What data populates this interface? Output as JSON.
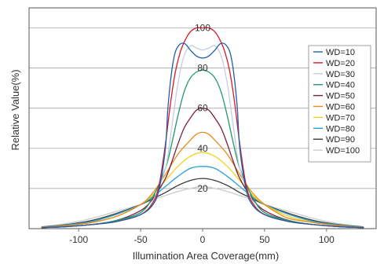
{
  "chart_data": {
    "type": "line",
    "title": "",
    "xlabel": "Illumination Area Coverage(mm)",
    "ylabel": "Relative Value(%)",
    "xlim": [
      -140,
      140
    ],
    "ylim": [
      0,
      110
    ],
    "x_ticks": [
      "-100",
      "-50",
      "0",
      "50",
      "100"
    ],
    "y_ticks": [
      "20",
      "40",
      "60",
      "80",
      "100"
    ],
    "grid": "horizontal",
    "legend_position": "right",
    "series": [
      {
        "name": "WD=10",
        "color": "#1f5fa8",
        "x": [
          -130,
          -110,
          -90,
          -70,
          -50,
          -40,
          -35,
          -30,
          -28,
          -25,
          -22,
          -18,
          -14,
          -10,
          -5,
          0,
          5,
          10,
          14,
          18,
          22,
          25,
          28,
          30,
          35,
          40,
          50,
          70,
          90,
          110,
          130
        ],
        "y": [
          0.5,
          1,
          2,
          3.5,
          7,
          12,
          20,
          40,
          60,
          78,
          88,
          92,
          92,
          89,
          86,
          85,
          86,
          89,
          92,
          92,
          88,
          78,
          60,
          40,
          20,
          12,
          7,
          3.5,
          2,
          1,
          0.5
        ]
      },
      {
        "name": "WD=20",
        "color": "#d7192b",
        "x": [
          -130,
          -110,
          -90,
          -70,
          -50,
          -40,
          -35,
          -30,
          -26,
          -22,
          -18,
          -14,
          -10,
          -5,
          0,
          5,
          10,
          14,
          18,
          22,
          26,
          30,
          35,
          40,
          50,
          70,
          90,
          110,
          130
        ],
        "y": [
          0.5,
          1,
          2,
          3.5,
          7,
          13,
          22,
          42,
          62,
          78,
          88,
          94,
          98,
          100,
          100,
          100,
          98,
          94,
          88,
          78,
          62,
          42,
          22,
          13,
          7,
          3.5,
          2,
          1,
          0.5
        ]
      },
      {
        "name": "WD=30",
        "color": "#c5cde0",
        "x": [
          -130,
          -110,
          -90,
          -70,
          -50,
          -40,
          -30,
          -25,
          -20,
          -15,
          -10,
          -5,
          0,
          5,
          10,
          15,
          20,
          25,
          30,
          40,
          50,
          70,
          90,
          110,
          130
        ],
        "y": [
          0.5,
          1,
          2,
          3.5,
          7,
          14,
          30,
          50,
          72,
          86,
          91,
          90,
          89,
          90,
          91,
          86,
          72,
          50,
          30,
          14,
          7,
          3.5,
          2,
          1,
          0.5
        ]
      },
      {
        "name": "WD=40",
        "color": "#1e9a6b",
        "x": [
          -130,
          -110,
          -90,
          -70,
          -50,
          -40,
          -30,
          -25,
          -20,
          -15,
          -10,
          -5,
          0,
          5,
          10,
          15,
          20,
          25,
          30,
          40,
          50,
          70,
          90,
          110,
          130
        ],
        "y": [
          0.5,
          1,
          2,
          4,
          8,
          16,
          30,
          42,
          56,
          68,
          75,
          78,
          79,
          78,
          75,
          68,
          56,
          42,
          30,
          16,
          8,
          4,
          2,
          1,
          0.5
        ]
      },
      {
        "name": "WD=50",
        "color": "#7a1f3d",
        "x": [
          -130,
          -110,
          -90,
          -70,
          -50,
          -40,
          -30,
          -25,
          -20,
          -15,
          -10,
          -5,
          0,
          5,
          10,
          15,
          20,
          25,
          30,
          40,
          50,
          70,
          90,
          110,
          130
        ],
        "y": [
          0.5,
          1,
          2,
          4,
          9,
          15,
          25,
          33,
          42,
          50,
          55,
          59,
          60,
          59,
          55,
          50,
          42,
          33,
          25,
          15,
          9,
          4,
          2,
          1,
          0.5
        ]
      },
      {
        "name": "WD=60",
        "color": "#e98a1a",
        "x": [
          -130,
          -110,
          -90,
          -70,
          -50,
          -40,
          -30,
          -20,
          -10,
          -5,
          0,
          5,
          10,
          20,
          30,
          40,
          50,
          60,
          70,
          90,
          110,
          130
        ],
        "y": [
          0.6,
          1.5,
          3,
          6,
          12,
          18,
          27,
          37,
          44,
          47,
          48,
          47,
          44,
          37,
          27,
          18,
          12,
          8,
          5,
          3,
          1.5,
          0.6
        ]
      },
      {
        "name": "WD=70",
        "color": "#f2d21a",
        "x": [
          -130,
          -110,
          -90,
          -70,
          -50,
          -40,
          -30,
          -20,
          -10,
          0,
          10,
          20,
          30,
          40,
          50,
          70,
          90,
          110,
          130
        ],
        "y": [
          0.6,
          1.5,
          3,
          6,
          12,
          17,
          24,
          31,
          36,
          38,
          36,
          31,
          24,
          17,
          12,
          6,
          3,
          1.5,
          0.6
        ]
      },
      {
        "name": "WD=80",
        "color": "#2aa2d6",
        "x": [
          -130,
          -110,
          -90,
          -70,
          -50,
          -40,
          -30,
          -20,
          -10,
          0,
          10,
          20,
          30,
          40,
          50,
          70,
          90,
          110,
          130
        ],
        "y": [
          0.7,
          1.8,
          3.5,
          7,
          12,
          16,
          21,
          26,
          30,
          31,
          30,
          26,
          21,
          16,
          12,
          7,
          3.5,
          1.8,
          0.7
        ]
      },
      {
        "name": "WD=90",
        "color": "#3a3a3a",
        "x": [
          -130,
          -110,
          -90,
          -70,
          -50,
          -40,
          -30,
          -20,
          -10,
          0,
          10,
          20,
          30,
          40,
          50,
          70,
          90,
          110,
          130
        ],
        "y": [
          0.8,
          2,
          4,
          7.5,
          12,
          15,
          18,
          21.5,
          24,
          25,
          24,
          21.5,
          18,
          15,
          12,
          7.5,
          4,
          2,
          0.8
        ]
      },
      {
        "name": "WD=100",
        "color": "#cccccc",
        "x": [
          -130,
          -110,
          -90,
          -70,
          -50,
          -40,
          -30,
          -20,
          -10,
          0,
          10,
          20,
          30,
          40,
          50,
          70,
          90,
          110,
          130
        ],
        "y": [
          1,
          2.5,
          5,
          8.5,
          12,
          14.5,
          16.5,
          18.5,
          20,
          21,
          20,
          18.5,
          16.5,
          14.5,
          12,
          8.5,
          5,
          2.5,
          1
        ]
      }
    ]
  }
}
